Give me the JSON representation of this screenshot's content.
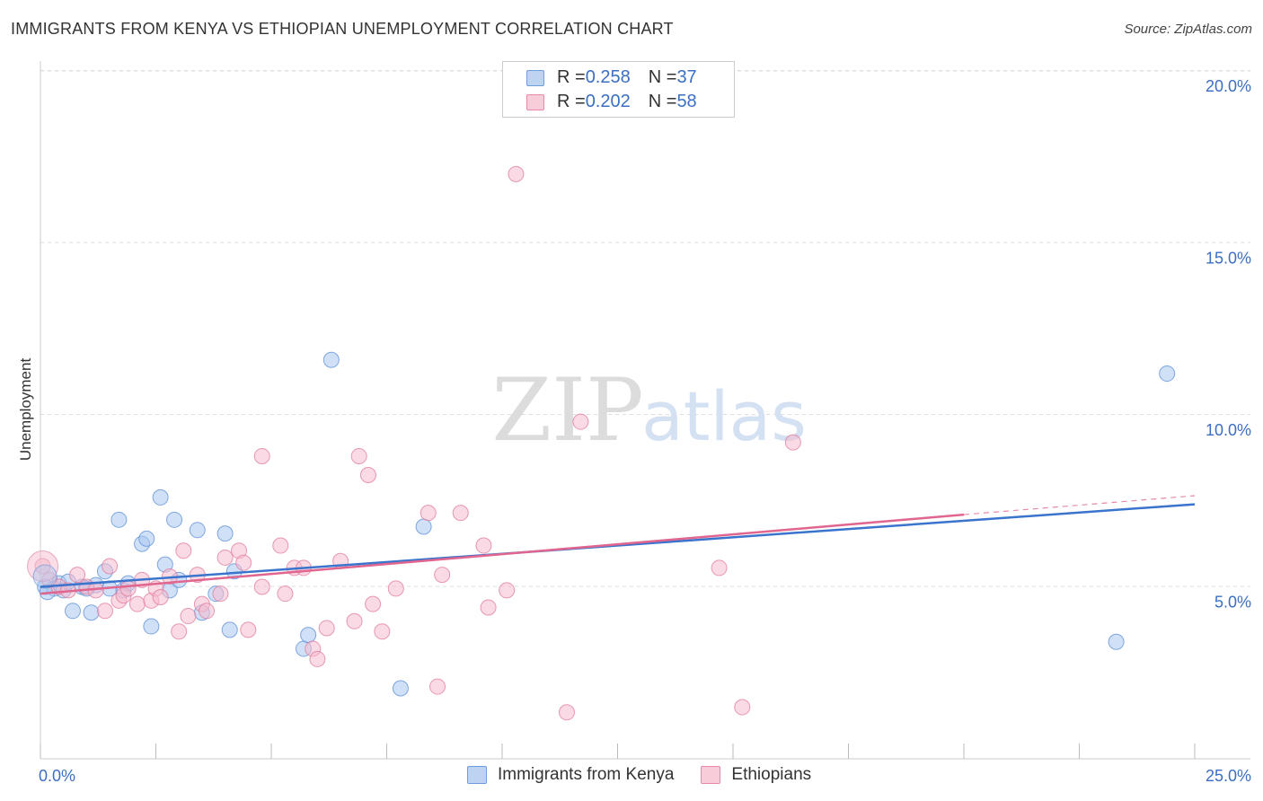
{
  "title": "IMMIGRANTS FROM KENYA VS ETHIOPIAN UNEMPLOYMENT CORRELATION CHART",
  "source": "Source: ZipAtlas.com",
  "watermark": {
    "zip": "ZIP",
    "atlas": "atlas"
  },
  "legend": {
    "r_label": "R = ",
    "n_label": "N = ",
    "series": [
      {
        "r": "0.258",
        "n": "37"
      },
      {
        "r": "0.202",
        "n": "58"
      }
    ]
  },
  "chart_data": {
    "type": "scatter",
    "title": "IMMIGRANTS FROM KENYA VS ETHIOPIAN UNEMPLOYMENT CORRELATION CHART",
    "xlabel": "",
    "ylabel": "Unemployment",
    "xlim": [
      0,
      25
    ],
    "ylim": [
      0,
      20
    ],
    "x_tick_labels": [
      {
        "value": 0,
        "label": "0.0%"
      },
      {
        "value": 25,
        "label": "25.0%"
      }
    ],
    "y_tick_labels": [
      {
        "value": 5,
        "label": "5.0%"
      },
      {
        "value": 10,
        "label": "10.0%"
      },
      {
        "value": 15,
        "label": "15.0%"
      },
      {
        "value": 20,
        "label": "20.0%"
      }
    ],
    "series": [
      {
        "name": "Immigrants from Kenya",
        "color": "#5b8ed8",
        "fill": "#a9c6ee",
        "trend": {
          "x": [
            0,
            25
          ],
          "y": [
            5.0,
            7.4
          ]
        },
        "points": [
          [
            0.1,
            5.0
          ],
          [
            0.3,
            4.95
          ],
          [
            0.4,
            5.1
          ],
          [
            0.5,
            4.9
          ],
          [
            0.6,
            5.15
          ],
          [
            0.7,
            4.3
          ],
          [
            0.9,
            5.0
          ],
          [
            1.1,
            4.25
          ],
          [
            1.2,
            5.05
          ],
          [
            1.4,
            5.45
          ],
          [
            1.5,
            4.95
          ],
          [
            1.7,
            6.95
          ],
          [
            1.8,
            4.9
          ],
          [
            1.9,
            5.1
          ],
          [
            2.2,
            6.25
          ],
          [
            2.3,
            6.4
          ],
          [
            2.4,
            3.85
          ],
          [
            2.6,
            7.6
          ],
          [
            2.7,
            5.65
          ],
          [
            2.8,
            4.9
          ],
          [
            2.9,
            6.95
          ],
          [
            3.0,
            5.2
          ],
          [
            3.4,
            6.65
          ],
          [
            3.5,
            4.25
          ],
          [
            3.8,
            4.8
          ],
          [
            4.0,
            6.55
          ],
          [
            4.1,
            3.75
          ],
          [
            4.2,
            5.45
          ],
          [
            5.7,
            3.2
          ],
          [
            5.8,
            3.6
          ],
          [
            6.3,
            11.6
          ],
          [
            7.8,
            2.05
          ],
          [
            8.3,
            6.75
          ],
          [
            23.3,
            3.4
          ],
          [
            24.4,
            11.2
          ],
          [
            0.15,
            4.85
          ],
          [
            1.0,
            4.95
          ]
        ]
      },
      {
        "name": "Ethiopians",
        "color": "#e07a9b",
        "fill": "#f5bccd",
        "trend": {
          "x": [
            0,
            20
          ],
          "y": [
            4.8,
            7.1
          ]
        },
        "trend_extension": {
          "x": [
            20,
            25
          ],
          "y": [
            7.1,
            7.65
          ]
        },
        "points": [
          [
            0.05,
            5.6
          ],
          [
            0.2,
            5.2
          ],
          [
            0.4,
            5.0
          ],
          [
            0.6,
            4.9
          ],
          [
            0.8,
            5.35
          ],
          [
            1.0,
            5.0
          ],
          [
            1.2,
            4.9
          ],
          [
            1.4,
            4.3
          ],
          [
            1.5,
            5.6
          ],
          [
            1.7,
            4.6
          ],
          [
            1.8,
            4.75
          ],
          [
            1.9,
            4.95
          ],
          [
            2.1,
            4.5
          ],
          [
            2.2,
            5.2
          ],
          [
            2.4,
            4.6
          ],
          [
            2.5,
            4.95
          ],
          [
            2.6,
            4.7
          ],
          [
            2.8,
            5.3
          ],
          [
            3.0,
            3.7
          ],
          [
            3.1,
            6.05
          ],
          [
            3.2,
            4.15
          ],
          [
            3.4,
            5.35
          ],
          [
            3.5,
            4.5
          ],
          [
            3.6,
            4.3
          ],
          [
            3.9,
            4.8
          ],
          [
            4.0,
            5.85
          ],
          [
            4.3,
            6.05
          ],
          [
            4.4,
            5.7
          ],
          [
            4.5,
            3.75
          ],
          [
            4.8,
            8.8
          ],
          [
            4.8,
            5.0
          ],
          [
            5.2,
            6.2
          ],
          [
            5.3,
            4.8
          ],
          [
            5.5,
            5.55
          ],
          [
            5.7,
            5.55
          ],
          [
            5.9,
            3.2
          ],
          [
            6.0,
            2.9
          ],
          [
            6.2,
            3.8
          ],
          [
            6.5,
            5.75
          ],
          [
            6.8,
            4.0
          ],
          [
            6.9,
            8.8
          ],
          [
            7.1,
            8.25
          ],
          [
            7.2,
            4.5
          ],
          [
            7.4,
            3.7
          ],
          [
            7.7,
            4.95
          ],
          [
            8.4,
            7.15
          ],
          [
            8.6,
            2.1
          ],
          [
            8.7,
            5.35
          ],
          [
            9.1,
            7.15
          ],
          [
            9.6,
            6.2
          ],
          [
            9.7,
            4.4
          ],
          [
            10.1,
            4.9
          ],
          [
            10.3,
            17.0
          ],
          [
            11.4,
            1.35
          ],
          [
            11.7,
            9.8
          ],
          [
            14.7,
            5.55
          ],
          [
            15.2,
            1.5
          ],
          [
            16.3,
            9.2
          ]
        ]
      }
    ]
  }
}
